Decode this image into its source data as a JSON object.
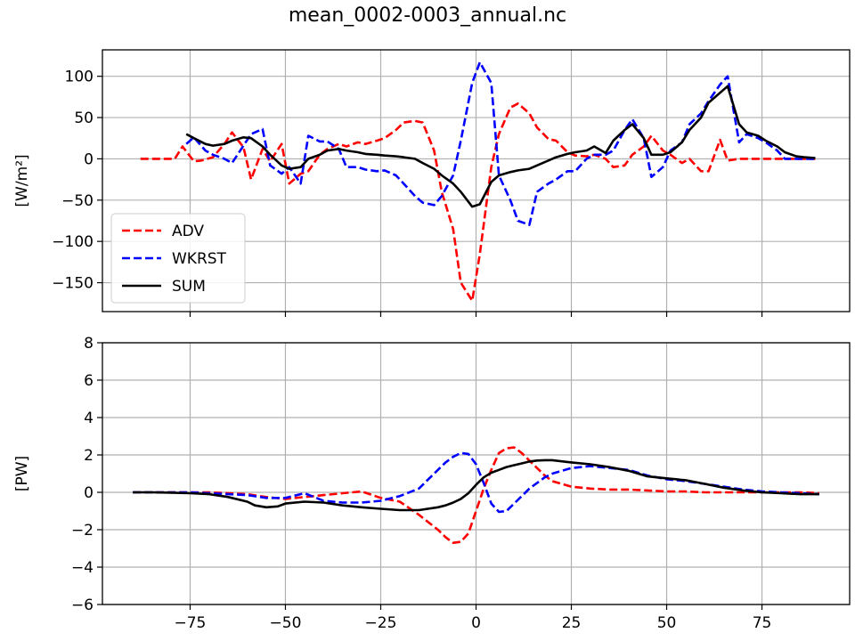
{
  "figure": {
    "title": "mean_0002-0003_annual.nc"
  },
  "chart_data": [
    {
      "type": "line",
      "title": "",
      "xlabel": "",
      "ylabel": "[W/m²]",
      "xlim": [
        -98,
        98
      ],
      "ylim": [
        -185,
        132
      ],
      "xticks": [
        -75,
        -50,
        -25,
        0,
        25,
        50,
        75
      ],
      "yticks": [
        -150,
        -100,
        -50,
        0,
        50,
        100
      ],
      "show_xtick_labels": false,
      "grid": true,
      "legend": "lower-left",
      "series": [
        {
          "name": "ADV",
          "color": "#ff0000",
          "dash": true,
          "x": [
            -88,
            -82,
            -79,
            -77,
            -74,
            -72,
            -69,
            -66,
            -64,
            -61,
            -59,
            -56,
            -54,
            -51,
            -49,
            -46,
            -44,
            -41,
            -39,
            -36,
            -34,
            -31,
            -29,
            -26,
            -24,
            -21,
            -19,
            -16,
            -14,
            -11,
            -9,
            -6,
            -4,
            -1,
            1,
            4,
            6,
            9,
            11,
            14,
            16,
            19,
            21,
            24,
            26,
            29,
            31,
            34,
            36,
            39,
            41,
            44,
            46,
            49,
            51,
            54,
            56,
            59,
            61,
            64,
            66,
            69,
            71,
            74,
            76,
            79,
            81,
            84,
            86,
            89
          ],
          "y": [
            0,
            0,
            0,
            15,
            -3,
            -2,
            2,
            18,
            32,
            14,
            -25,
            12,
            -3,
            18,
            -30,
            -18,
            -15,
            5,
            12,
            18,
            15,
            20,
            18,
            22,
            25,
            35,
            44,
            46,
            44,
            10,
            -40,
            -85,
            -150,
            -172,
            -115,
            -10,
            30,
            62,
            67,
            55,
            38,
            24,
            22,
            8,
            4,
            3,
            5,
            0,
            -10,
            -8,
            5,
            15,
            28,
            10,
            5,
            -5,
            0,
            -15,
            -15,
            23,
            -2,
            0,
            0,
            0,
            0,
            0,
            0,
            0,
            0,
            0
          ]
        },
        {
          "name": "WKRST",
          "color": "#0000ff",
          "dash": true,
          "x": [
            -76,
            -74,
            -71,
            -69,
            -66,
            -64,
            -61,
            -59,
            -56,
            -54,
            -51,
            -49,
            -46,
            -44,
            -41,
            -39,
            -36,
            -34,
            -31,
            -29,
            -26,
            -24,
            -21,
            -19,
            -16,
            -14,
            -11,
            -9,
            -6,
            -4,
            -1,
            1,
            4,
            6,
            9,
            11,
            14,
            16,
            19,
            21,
            24,
            26,
            29,
            31,
            34,
            36,
            39,
            41,
            44,
            46,
            49,
            51,
            54,
            56,
            59,
            61,
            64,
            66,
            69,
            71,
            74,
            76,
            79,
            81,
            84,
            86,
            89
          ],
          "y": [
            18,
            26,
            10,
            5,
            0,
            -5,
            16,
            30,
            36,
            -8,
            -18,
            -10,
            -30,
            28,
            21,
            21,
            12,
            -10,
            -10,
            -13,
            -15,
            -14,
            -20,
            -30,
            -45,
            -53,
            -56,
            -45,
            -20,
            22,
            92,
            117,
            92,
            -20,
            -50,
            -75,
            -80,
            -40,
            -30,
            -25,
            -15,
            -15,
            0,
            5,
            5,
            10,
            35,
            48,
            25,
            -22,
            -10,
            10,
            20,
            42,
            55,
            70,
            90,
            100,
            20,
            30,
            25,
            20,
            10,
            0,
            0,
            0,
            0
          ]
        },
        {
          "name": "SUM",
          "color": "#000000",
          "dash": false,
          "x": [
            -76,
            -74,
            -71,
            -69,
            -66,
            -64,
            -61,
            -59,
            -56,
            -54,
            -51,
            -49,
            -46,
            -44,
            -41,
            -39,
            -36,
            -34,
            -31,
            -29,
            -26,
            -24,
            -21,
            -19,
            -16,
            -14,
            -11,
            -9,
            -6,
            -4,
            -1,
            1,
            4,
            6,
            9,
            11,
            14,
            16,
            19,
            21,
            24,
            26,
            29,
            31,
            34,
            36,
            39,
            41,
            44,
            46,
            49,
            51,
            54,
            56,
            59,
            61,
            64,
            66,
            69,
            71,
            74,
            76,
            79,
            81,
            84,
            86,
            89
          ],
          "y": [
            30,
            25,
            18,
            16,
            18,
            22,
            26,
            25,
            15,
            5,
            -8,
            -12,
            -10,
            0,
            5,
            10,
            12,
            10,
            8,
            6,
            5,
            4,
            3,
            2,
            0,
            -5,
            -12,
            -20,
            -30,
            -40,
            -58,
            -55,
            -28,
            -20,
            -16,
            -14,
            -12,
            -8,
            -2,
            2,
            6,
            8,
            10,
            15,
            7,
            22,
            35,
            42,
            25,
            5,
            5,
            8,
            20,
            35,
            50,
            68,
            80,
            88,
            42,
            32,
            28,
            22,
            15,
            8,
            3,
            2,
            1
          ]
        }
      ]
    },
    {
      "type": "line",
      "title": "",
      "xlabel": "",
      "ylabel": "[PW]",
      "xlim": [
        -98,
        98
      ],
      "ylim": [
        -6,
        8
      ],
      "xticks": [
        -75,
        -50,
        -25,
        0,
        25,
        50,
        75
      ],
      "xtick_labels": [
        "−75",
        "−50",
        "−25",
        "0",
        "25",
        "50",
        "75"
      ],
      "yticks": [
        -6,
        -4,
        -2,
        0,
        2,
        4,
        6,
        8
      ],
      "show_xtick_labels": true,
      "grid": true,
      "legend": "none",
      "series": [
        {
          "color": "#ff0000",
          "dash": true,
          "x": [
            -90,
            -85,
            -80,
            -75,
            -70,
            -65,
            -60,
            -55,
            -50,
            -45,
            -40,
            -35,
            -30,
            -25,
            -20,
            -15,
            -10,
            -8,
            -6,
            -4,
            -2,
            0,
            2,
            4,
            6,
            8,
            10,
            12,
            14,
            16,
            18,
            20,
            25,
            30,
            35,
            40,
            45,
            50,
            55,
            60,
            65,
            70,
            75,
            80,
            85,
            90
          ],
          "y": [
            0,
            0,
            0,
            0,
            0,
            -0.05,
            -0.1,
            -0.25,
            -0.35,
            -0.25,
            -0.15,
            -0.05,
            0.05,
            -0.3,
            -0.5,
            -1.2,
            -2.0,
            -2.4,
            -2.7,
            -2.65,
            -2.2,
            -1.0,
            0.2,
            1.2,
            2.1,
            2.35,
            2.4,
            2.1,
            1.7,
            1.3,
            0.9,
            0.6,
            0.3,
            0.2,
            0.15,
            0.15,
            0.1,
            0.05,
            0.05,
            0.0,
            0.0,
            0.0,
            0.0,
            0.0,
            0.0,
            -0.05
          ]
        },
        {
          "color": "#0000ff",
          "dash": true,
          "x": [
            -90,
            -85,
            -80,
            -75,
            -70,
            -65,
            -60,
            -55,
            -50,
            -45,
            -40,
            -35,
            -30,
            -25,
            -20,
            -15,
            -10,
            -8,
            -6,
            -4,
            -2,
            0,
            2,
            4,
            6,
            8,
            10,
            12,
            14,
            16,
            18,
            20,
            25,
            30,
            35,
            40,
            45,
            50,
            55,
            60,
            65,
            70,
            75,
            80,
            85,
            90
          ],
          "y": [
            0,
            0,
            0,
            0,
            -0.05,
            -0.1,
            -0.15,
            -0.3,
            -0.3,
            -0.05,
            -0.45,
            -0.55,
            -0.55,
            -0.45,
            -0.2,
            0.2,
            1.2,
            1.6,
            1.9,
            2.1,
            2.05,
            1.5,
            0.5,
            -0.6,
            -1.05,
            -1.0,
            -0.6,
            -0.2,
            0.2,
            0.5,
            0.8,
            1.0,
            1.3,
            1.4,
            1.3,
            1.2,
            0.9,
            0.7,
            0.6,
            0.45,
            0.3,
            0.15,
            0.05,
            0.0,
            -0.05,
            -0.1
          ]
        },
        {
          "color": "#000000",
          "dash": false,
          "x": [
            -90,
            -85,
            -80,
            -75,
            -70,
            -65,
            -60,
            -58,
            -55,
            -52,
            -50,
            -45,
            -40,
            -35,
            -30,
            -25,
            -20,
            -15,
            -10,
            -8,
            -6,
            -4,
            -2,
            0,
            2,
            4,
            6,
            8,
            10,
            12,
            14,
            16,
            18,
            20,
            25,
            30,
            35,
            40,
            45,
            50,
            55,
            60,
            65,
            70,
            75,
            80,
            85,
            90
          ],
          "y": [
            0,
            0,
            -0.02,
            -0.05,
            -0.1,
            -0.25,
            -0.5,
            -0.7,
            -0.8,
            -0.75,
            -0.6,
            -0.5,
            -0.55,
            -0.7,
            -0.8,
            -0.88,
            -0.95,
            -0.95,
            -0.8,
            -0.7,
            -0.55,
            -0.35,
            -0.05,
            0.4,
            0.8,
            1.05,
            1.2,
            1.35,
            1.45,
            1.55,
            1.65,
            1.7,
            1.72,
            1.72,
            1.6,
            1.5,
            1.35,
            1.15,
            0.85,
            0.75,
            0.65,
            0.45,
            0.25,
            0.1,
            0.0,
            -0.05,
            -0.1,
            -0.1
          ]
        }
      ]
    }
  ]
}
